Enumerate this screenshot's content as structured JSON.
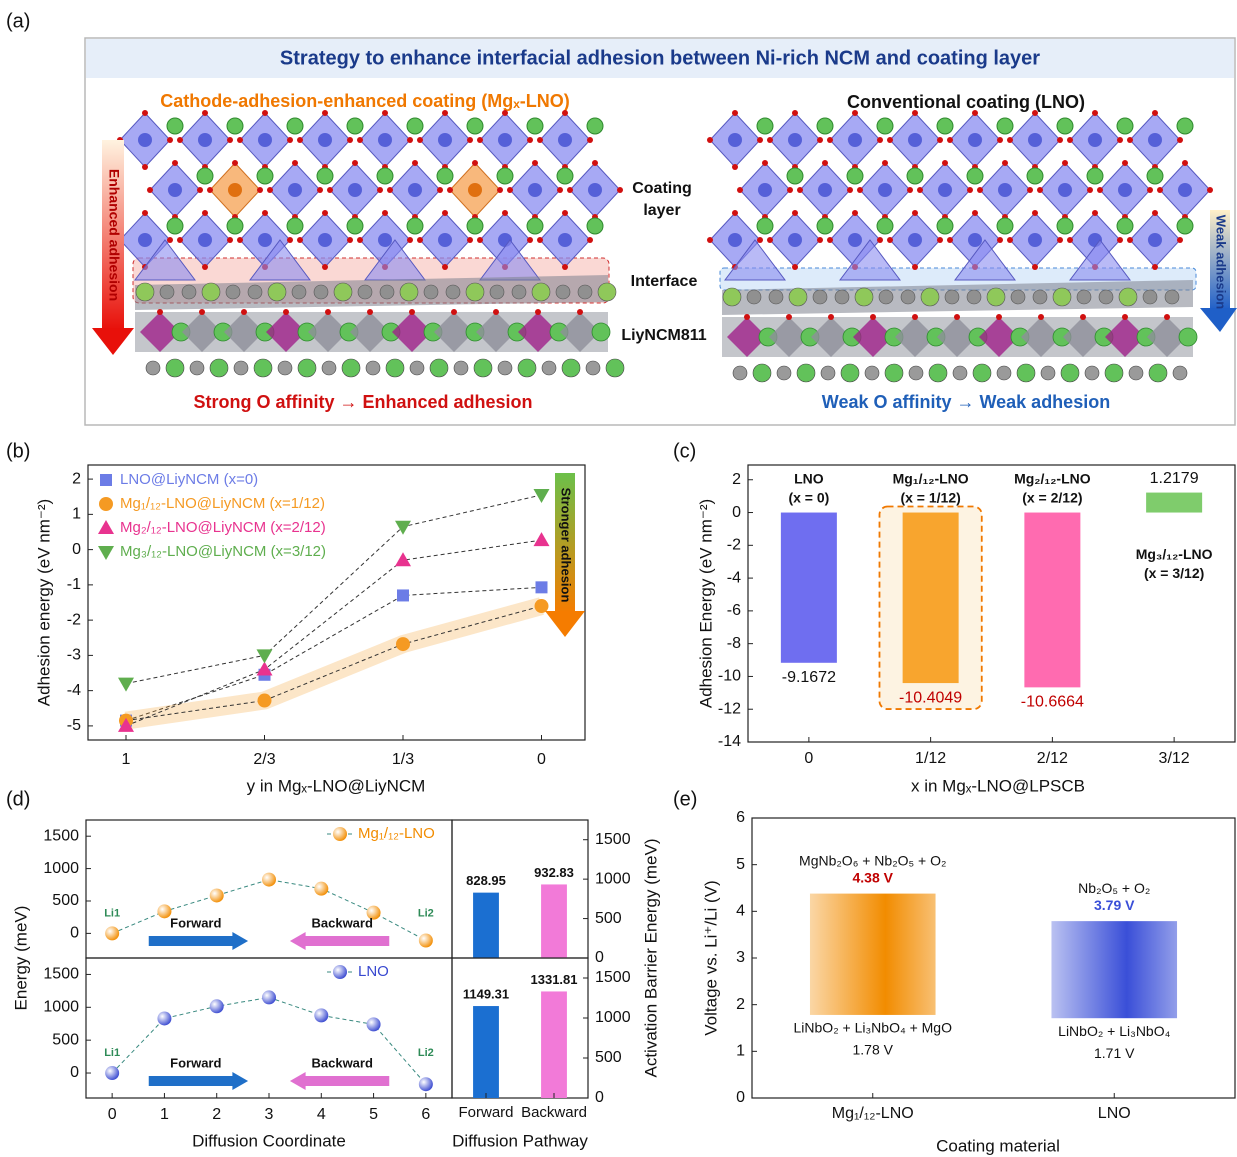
{
  "panels": [
    "(a)",
    "(b)",
    "(c)",
    "(d)",
    "(e)"
  ],
  "panel_a": {
    "title": "Strategy to enhance interfacial adhesion between Ni-rich NCM and coating layer",
    "left_title": "Cathode-adhesion-enhanced coating (Mgₓ-LNO)",
    "right_title": "Conventional coating (LNO)",
    "coating_label": [
      "Coating",
      "layer"
    ],
    "interface_label": "Interface",
    "substrate_label": "LiyNCM811",
    "left_arrow": "Enhanced adhesion",
    "right_arrow": "Weak adhesion",
    "left_caption": "Strong O affinity → Enhanced adhesion",
    "right_caption": "Weak O affinity → Weak adhesion"
  },
  "panel_d": {
    "ylabel": "Energy (meV)",
    "y2label": "Activation Barrier Energy (meV)",
    "xlabel": "Diffusion Coordinate",
    "x2label": "Diffusion Pathway"
  },
  "chart_data": [
    {
      "type": "line",
      "categories": [
        "1",
        "2/3",
        "1/3",
        "0"
      ],
      "xlabel": "y in Mgₓ-LNO@LiyNCM",
      "ylabel": "Adhesion energy (eV nm⁻²)",
      "ylim": [
        -5.4,
        2.4
      ],
      "yticks": [
        -5,
        -4,
        -3,
        -2,
        -1,
        0,
        1,
        2
      ],
      "annotation": "Stronger adhesion",
      "series": [
        {
          "name": "LNO@LiyNCM (x=0)",
          "color": "#6c7ce6",
          "marker": "square",
          "values": [
            -4.85,
            -3.55,
            -1.3,
            -1.07
          ]
        },
        {
          "name": "Mg₁/₁₂-LNO@LiyNCM (x=1/12)",
          "color": "#f59a23",
          "marker": "circle",
          "band": true,
          "values": [
            -4.85,
            -4.28,
            -2.68,
            -1.6
          ]
        },
        {
          "name": "Mg₂/₁₂-LNO@LiyNCM (x=2/12)",
          "color": "#e8338f",
          "marker": "triangle-up",
          "values": [
            -5.0,
            -3.4,
            -0.3,
            0.27
          ]
        },
        {
          "name": "Mg₃/₁₂-LNO@LiyNCM (x=3/12)",
          "color": "#5fae4e",
          "marker": "triangle-down",
          "values": [
            -3.8,
            -3.0,
            0.65,
            1.55
          ]
        }
      ]
    },
    {
      "type": "bar",
      "categories": [
        "0",
        "1/12",
        "2/12",
        "3/12"
      ],
      "values": [
        -9.1672,
        -10.4049,
        -10.6664,
        1.2179
      ],
      "colors": [
        "#6f6ef0",
        "#f8a52e",
        "#ff6bb0",
        "#7fcc6c"
      ],
      "value_label_colors": [
        "#111111",
        "#c00000",
        "#c00000",
        "#111111"
      ],
      "bar_names": [
        [
          "LNO",
          "(x = 0)"
        ],
        [
          "Mg₁/₁₂-LNO",
          "(x = 1/12)"
        ],
        [
          "Mg₂/₁₂-LNO",
          "(x = 2/12)"
        ],
        [
          "Mg₃/₁₂-LNO",
          "(x = 3/12)"
        ]
      ],
      "xlabel": "x in Mgₓ-LNO@LPSCB",
      "ylabel": "Adhesion Energy (eV nm⁻²)",
      "ylim": [
        -14,
        2.9
      ],
      "yticks": [
        -14,
        -12,
        -10,
        -8,
        -6,
        -4,
        -2,
        0,
        2
      ]
    },
    {
      "type": "line",
      "name": "Mg₁/₁₂-LNO",
      "color": "#f28c00",
      "x": [
        0,
        1,
        2,
        3,
        4,
        5,
        6
      ],
      "values": [
        0,
        340,
        585,
        830,
        690,
        320,
        -110
      ],
      "xlim": [
        -0.5,
        6.5
      ],
      "ylim": [
        -380,
        1750
      ],
      "yticks": [
        0,
        500,
        1000,
        1500
      ],
      "site_labels": [
        "Li1",
        "Li2"
      ],
      "arrow_labels": [
        "Forward",
        "Backward"
      ]
    },
    {
      "type": "bar",
      "values": [
        828.95,
        932.83
      ],
      "colors": [
        "#1b6fd1",
        "#f27ad8"
      ],
      "ylim": [
        0,
        1750
      ],
      "yticks": [
        0,
        500,
        1000,
        1500
      ]
    },
    {
      "type": "line",
      "name": "LNO",
      "color": "#3848d0",
      "x": [
        0,
        1,
        2,
        3,
        4,
        5,
        6
      ],
      "values": [
        0,
        830,
        1015,
        1150,
        877,
        740,
        -170
      ],
      "xlim": [
        -0.5,
        6.5
      ],
      "xticks": [
        0,
        1,
        2,
        3,
        4,
        5,
        6
      ],
      "ylim": [
        -380,
        1750
      ],
      "yticks": [
        0,
        500,
        1000,
        1500
      ],
      "site_labels": [
        "Li1",
        "Li2"
      ],
      "arrow_labels": [
        "Forward",
        "Backward"
      ]
    },
    {
      "type": "bar",
      "categories": [
        "Forward",
        "Backward"
      ],
      "values": [
        1149.31,
        1331.81
      ],
      "colors": [
        "#1b6fd1",
        "#f27ad8"
      ],
      "ylim": [
        0,
        1750
      ],
      "yticks": [
        0,
        500,
        1000,
        1500
      ]
    },
    {
      "type": "range_bar",
      "categories": [
        "Mg₁/₁₂-LNO",
        "LNO"
      ],
      "low": [
        1.78,
        1.71
      ],
      "high": [
        4.38,
        3.79
      ],
      "low_labels": [
        "1.78 V",
        "1.71 V"
      ],
      "high_labels": [
        "4.38 V",
        "3.79 V"
      ],
      "upper_phases": [
        "MgNb₂O₆ + Nb₂O₅ + O₂",
        "Nb₂O₅ + O₂"
      ],
      "lower_phases": [
        "LiNbO₂ + Li₃NbO₄ + MgO",
        "LiNbO₂ + Li₃NbO₄"
      ],
      "colors": [
        "#f28c00",
        "#3a4fd8"
      ],
      "high_label_colors": [
        "#c00000",
        "#3a4fd8"
      ],
      "xlabel": "Coating material",
      "ylabel": "Voltage vs. Li⁺/Li (V)",
      "ylim": [
        0,
        6
      ],
      "yticks": [
        0,
        1,
        2,
        3,
        4,
        5,
        6
      ]
    }
  ]
}
